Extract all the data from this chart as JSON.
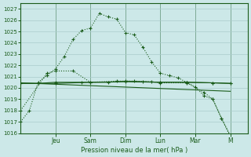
{
  "xlabel": "Pression niveau de la mer( hPa )",
  "ylim": [
    1016,
    1027.5
  ],
  "ytick_vals": [
    1016,
    1017,
    1018,
    1019,
    1020,
    1021,
    1022,
    1023,
    1024,
    1025,
    1026,
    1027
  ],
  "bg_color": "#cce8e8",
  "grid_color": "#aacccc",
  "line_color": "#1a5c1a",
  "day_labels": [
    "Jeu",
    "Sam",
    "Dim",
    "Lun",
    "Mar",
    "M"
  ],
  "day_positions": [
    2.0,
    4.0,
    6.0,
    8.0,
    10.0,
    12.0
  ],
  "xlim": [
    0,
    13.0
  ],
  "series1_x": [
    0,
    0.5,
    1.0,
    1.5,
    2.0,
    2.5,
    3.0,
    3.5,
    4.0,
    4.5,
    5.0,
    5.5,
    6.0,
    6.5,
    7.0,
    7.5,
    8.0,
    8.5,
    9.0,
    9.5,
    10.0,
    10.5,
    11.0,
    11.5,
    12.0
  ],
  "series1_y": [
    1017.0,
    1018.0,
    1020.5,
    1021.1,
    1021.7,
    1022.8,
    1024.3,
    1025.1,
    1025.3,
    1026.6,
    1026.3,
    1026.1,
    1024.9,
    1024.7,
    1023.6,
    1022.3,
    1021.3,
    1021.1,
    1020.9,
    1020.5,
    1020.1,
    1019.3,
    1019.0,
    1017.3,
    1015.7
  ],
  "series2_x": [
    0.0,
    1.0,
    2.0,
    3.5,
    5.0,
    6.0,
    7.0,
    8.0,
    9.5,
    11.0,
    12.0
  ],
  "series2_y": [
    1020.4,
    1020.4,
    1020.5,
    1020.5,
    1020.5,
    1020.6,
    1020.55,
    1020.5,
    1020.5,
    1020.45,
    1020.4
  ],
  "series3_x": [
    0.0,
    2.0,
    4.0,
    6.0,
    8.0,
    9.5,
    11.0,
    12.0
  ],
  "series3_y": [
    1020.4,
    1020.4,
    1020.5,
    1020.55,
    1020.5,
    1020.5,
    1020.45,
    1020.4
  ],
  "series4_x": [
    0.0,
    12.0
  ],
  "series4_y": [
    1020.45,
    1019.7
  ],
  "series5_x": [
    0.0,
    1.5,
    2.0,
    3.0,
    4.0,
    5.5,
    6.5,
    7.5,
    8.0,
    9.5,
    10.5,
    11.0,
    11.5,
    12.0
  ],
  "series5_y": [
    1018.0,
    1021.3,
    1021.5,
    1021.5,
    1020.5,
    1020.6,
    1020.6,
    1020.55,
    1020.45,
    1020.45,
    1019.6,
    1019.0,
    1017.3,
    1015.8
  ]
}
